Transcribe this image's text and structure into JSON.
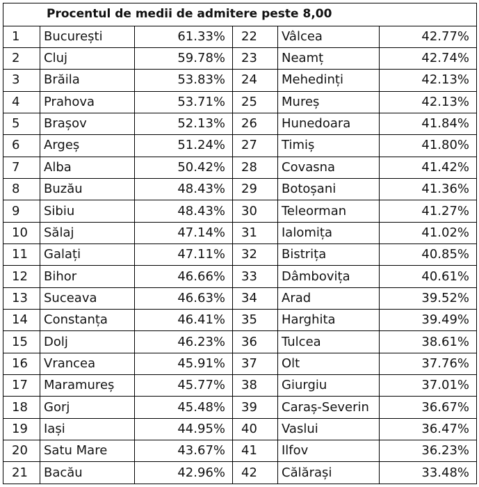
{
  "title": "Procentul de medii de admitere peste 8,00",
  "rows": [
    {
      "left": {
        "rank": "1",
        "county": "București",
        "pct": "61.33%"
      },
      "right": {
        "rank": "22",
        "county": "Vâlcea",
        "pct": "42.77%"
      }
    },
    {
      "left": {
        "rank": "2",
        "county": "Cluj",
        "pct": "59.78%"
      },
      "right": {
        "rank": "23",
        "county": "Neamț",
        "pct": "42.74%"
      }
    },
    {
      "left": {
        "rank": "3",
        "county": "Brăila",
        "pct": "53.83%"
      },
      "right": {
        "rank": "24",
        "county": "Mehedinți",
        "pct": "42.13%"
      }
    },
    {
      "left": {
        "rank": "4",
        "county": "Prahova",
        "pct": "53.71%"
      },
      "right": {
        "rank": "25",
        "county": "Mureș",
        "pct": "42.13%"
      }
    },
    {
      "left": {
        "rank": "5",
        "county": "Brașov",
        "pct": "52.13%"
      },
      "right": {
        "rank": "26",
        "county": "Hunedoara",
        "pct": "41.84%"
      }
    },
    {
      "left": {
        "rank": "6",
        "county": "Argeș",
        "pct": "51.24%"
      },
      "right": {
        "rank": "27",
        "county": "Timiș",
        "pct": "41.80%"
      }
    },
    {
      "left": {
        "rank": "7",
        "county": "Alba",
        "pct": "50.42%"
      },
      "right": {
        "rank": "28",
        "county": "Covasna",
        "pct": "41.42%"
      }
    },
    {
      "left": {
        "rank": "8",
        "county": "Buzău",
        "pct": "48.43%"
      },
      "right": {
        "rank": "29",
        "county": "Botoșani",
        "pct": "41.36%"
      }
    },
    {
      "left": {
        "rank": "9",
        "county": "Sibiu",
        "pct": "48.43%"
      },
      "right": {
        "rank": "30",
        "county": "Teleorman",
        "pct": "41.27%"
      }
    },
    {
      "left": {
        "rank": "10",
        "county": "Sălaj",
        "pct": "47.14%"
      },
      "right": {
        "rank": "31",
        "county": "Ialomița",
        "pct": "41.02%"
      }
    },
    {
      "left": {
        "rank": "11",
        "county": "Galați",
        "pct": "47.11%"
      },
      "right": {
        "rank": "32",
        "county": "Bistrița",
        "pct": "40.85%"
      }
    },
    {
      "left": {
        "rank": "12",
        "county": "Bihor",
        "pct": "46.66%"
      },
      "right": {
        "rank": "33",
        "county": "Dâmbovița",
        "pct": "40.61%"
      }
    },
    {
      "left": {
        "rank": "13",
        "county": "Suceava",
        "pct": "46.63%"
      },
      "right": {
        "rank": "34",
        "county": "Arad",
        "pct": "39.52%"
      }
    },
    {
      "left": {
        "rank": "14",
        "county": "Constanța",
        "pct": "46.41%"
      },
      "right": {
        "rank": "35",
        "county": "Harghita",
        "pct": "39.49%"
      }
    },
    {
      "left": {
        "rank": "15",
        "county": "Dolj",
        "pct": "46.23%"
      },
      "right": {
        "rank": "36",
        "county": "Tulcea",
        "pct": "38.61%"
      }
    },
    {
      "left": {
        "rank": "16",
        "county": "Vrancea",
        "pct": "45.91%"
      },
      "right": {
        "rank": "37",
        "county": "Olt",
        "pct": "37.76%"
      }
    },
    {
      "left": {
        "rank": "17",
        "county": "Maramureș",
        "pct": "45.77%"
      },
      "right": {
        "rank": "38",
        "county": "Giurgiu",
        "pct": "37.01%"
      }
    },
    {
      "left": {
        "rank": "18",
        "county": "Gorj",
        "pct": "45.48%"
      },
      "right": {
        "rank": "39",
        "county": "Caraș-Severin",
        "pct": "36.67%"
      }
    },
    {
      "left": {
        "rank": "19",
        "county": "Iași",
        "pct": "44.95%"
      },
      "right": {
        "rank": "40",
        "county": "Vaslui",
        "pct": "36.47%"
      }
    },
    {
      "left": {
        "rank": "20",
        "county": "Satu Mare",
        "pct": "43.67%"
      },
      "right": {
        "rank": "41",
        "county": "Ilfov",
        "pct": "36.23%"
      }
    },
    {
      "left": {
        "rank": "21",
        "county": "Bacău",
        "pct": "42.96%"
      },
      "right": {
        "rank": "42",
        "county": "Călărași",
        "pct": "33.48%"
      }
    }
  ]
}
